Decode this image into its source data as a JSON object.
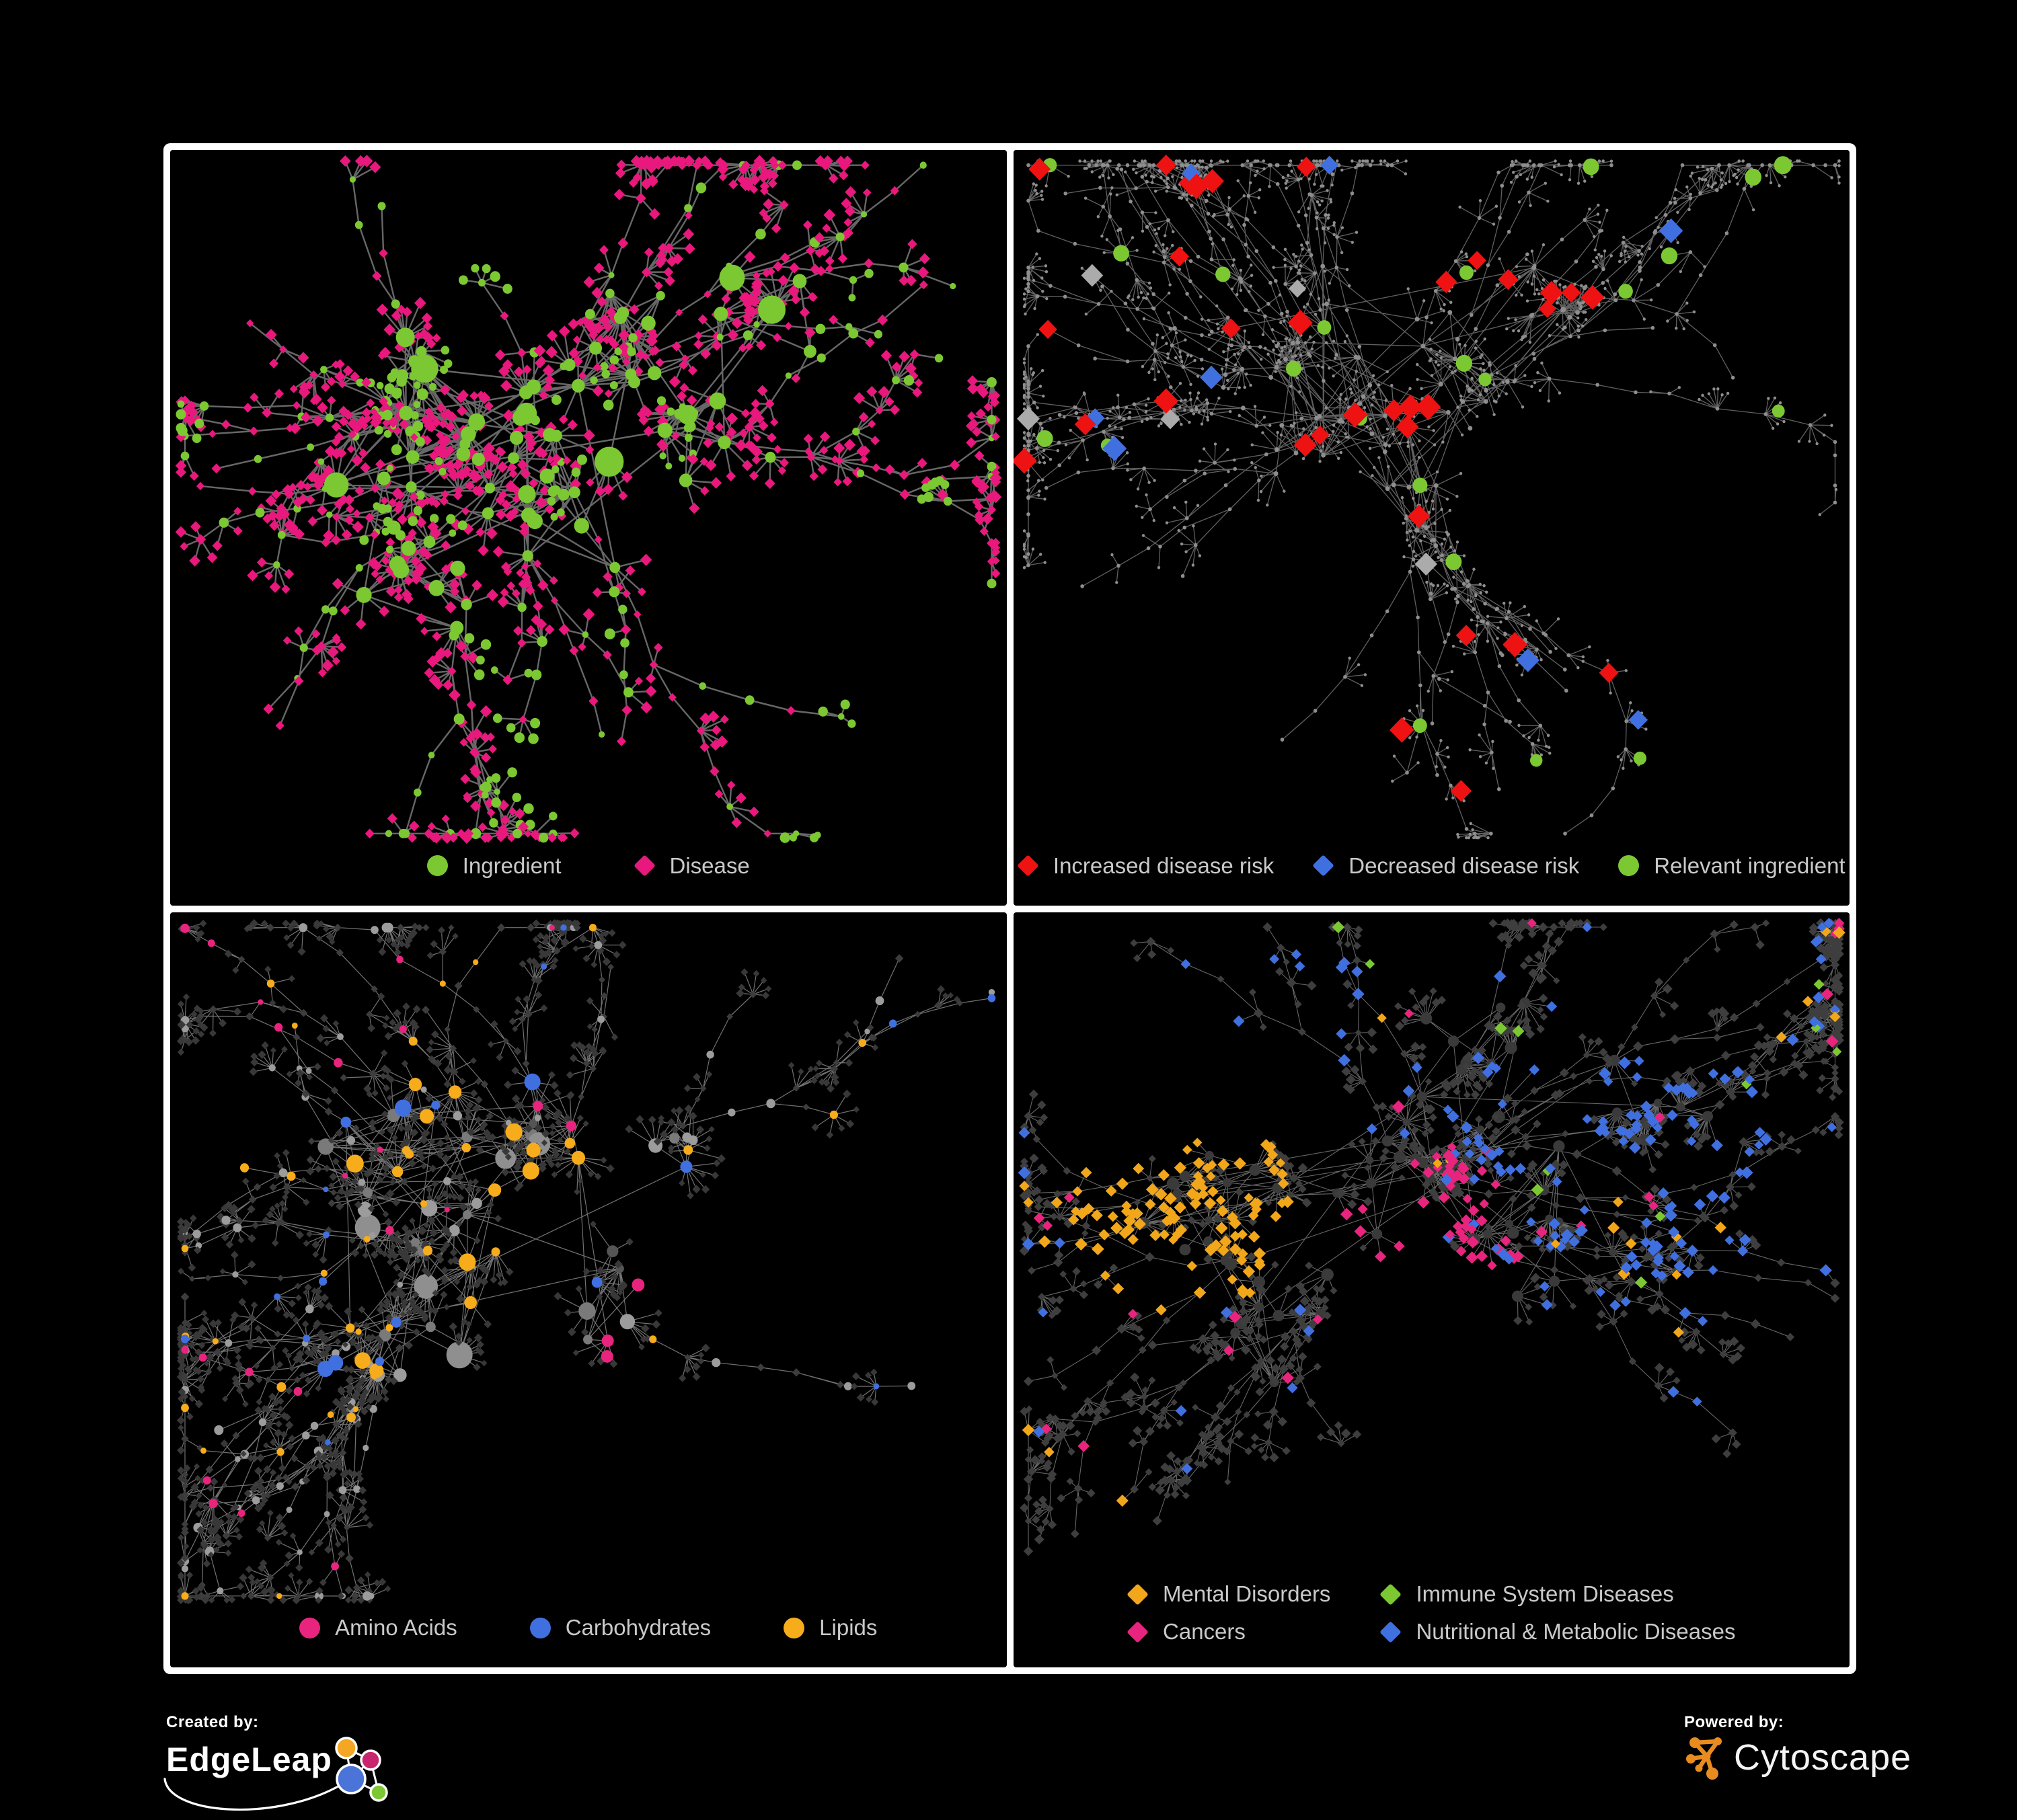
{
  "page_background": "#000000",
  "panels": [
    {
      "name": "ingredient-disease-network",
      "legend": [
        {
          "label": "Ingredient",
          "shape": "circle",
          "color": "#7CC832"
        },
        {
          "label": "Disease",
          "shape": "diamond",
          "color": "#E8187D"
        }
      ],
      "network": {
        "seed": 7,
        "style": "p1",
        "edge": {
          "color": "#707070",
          "width": 2.4,
          "opacity": 0.92
        },
        "clusters": [
          [
            0.33,
            0.36,
            0.16,
            20
          ],
          [
            0.51,
            0.3,
            0.13,
            14
          ],
          [
            0.44,
            0.5,
            0.14,
            15
          ],
          [
            0.29,
            0.58,
            0.12,
            11
          ],
          [
            0.61,
            0.42,
            0.1,
            7
          ],
          [
            0.71,
            0.24,
            0.09,
            6
          ]
        ],
        "leafChance": 0.8,
        "leafMin": 3,
        "leafMax": 11,
        "leafR": [
          26,
          56
        ],
        "tendrils": 26,
        "step": [
          42,
          80
        ],
        "fanChance": 0.42,
        "colors": {
          "green": "#7CC832",
          "pink": "#E8187D"
        }
      }
    },
    {
      "name": "disease-risk-network",
      "legend": [
        {
          "label": "Increased disease risk",
          "shape": "diamond",
          "color": "#EE1212"
        },
        {
          "label": "Decreased disease risk",
          "shape": "diamond",
          "color": "#4070E0"
        },
        {
          "label": "Relevant ingredient",
          "shape": "circle",
          "color": "#7CC832"
        }
      ],
      "network": {
        "seed": 13,
        "style": "p2",
        "edge": {
          "color": "#6A6A6A",
          "width": 1.3,
          "opacity": 0.9
        },
        "clusters": [
          [
            0.42,
            0.34,
            0.15,
            22
          ],
          [
            0.56,
            0.32,
            0.12,
            14
          ],
          [
            0.33,
            0.39,
            0.11,
            12
          ],
          [
            0.49,
            0.47,
            0.12,
            12
          ],
          [
            0.65,
            0.22,
            0.09,
            6
          ],
          [
            0.24,
            0.3,
            0.09,
            6
          ]
        ],
        "leafChance": 0.75,
        "leafMin": 3,
        "leafMax": 10,
        "leafR": [
          22,
          48
        ],
        "tendrils": 34,
        "step": [
          40,
          78
        ],
        "fanChance": 0.45,
        "base": {
          "hubR": 3.4,
          "leafR": 2.2,
          "chainR": 2.8,
          "color": "#8E8E8E"
        },
        "highlight": {
          "hubChance": 0.16,
          "chainChance": 0.035,
          "types": [
            {
              "shape": "d",
              "color": "#EE1212",
              "w": 0.5,
              "s": [
                13,
                19
              ]
            },
            {
              "shape": "c",
              "color": "#7CC832",
              "w": 0.24,
              "s": [
                9,
                13
              ]
            },
            {
              "shape": "d",
              "color": "#4070E0",
              "w": 0.13,
              "s": [
                13,
                18
              ]
            },
            {
              "shape": "d",
              "color": "#ABABAB",
              "w": 0.13,
              "s": [
                12,
                17
              ]
            }
          ]
        }
      }
    },
    {
      "name": "nutrient-class-network",
      "legend": [
        {
          "label": "Amino Acids",
          "shape": "circle",
          "color": "#E8247E"
        },
        {
          "label": "Carbohydrates",
          "shape": "circle",
          "color": "#4070E0"
        },
        {
          "label": "Lipids",
          "shape": "circle",
          "color": "#F7AC1B"
        }
      ],
      "network": {
        "seed": 21,
        "style": "p3",
        "edge": {
          "color": "#8F8F8F",
          "width": 1.2,
          "opacity": 0.8
        },
        "clusters": [
          [
            0.27,
            0.37,
            0.15,
            18
          ],
          [
            0.42,
            0.3,
            0.12,
            14
          ],
          [
            0.36,
            0.5,
            0.13,
            14
          ],
          [
            0.52,
            0.58,
            0.11,
            9
          ],
          [
            0.23,
            0.62,
            0.1,
            8
          ],
          [
            0.6,
            0.36,
            0.09,
            6
          ]
        ],
        "leafChance": 0.8,
        "leafMin": 3,
        "leafMax": 12,
        "leafR": [
          24,
          52
        ],
        "tendrils": 28,
        "step": [
          42,
          80
        ],
        "fanChance": 0.4,
        "palette": {
          "grays": [
            "#9C9C9C",
            "#7A7A7A",
            "#555555"
          ],
          "orange": "#F7AC1B",
          "pink": "#E8247E",
          "blue": "#4070E0",
          "leaf": "#383838"
        }
      }
    },
    {
      "name": "disease-class-network",
      "legend": [
        {
          "label": "Mental Disorders",
          "shape": "diamond",
          "color": "#F2A71B"
        },
        {
          "label": "Immune System Diseases",
          "shape": "diamond",
          "color": "#7CC832"
        },
        {
          "label": "Cancers",
          "shape": "diamond",
          "color": "#E8247E"
        },
        {
          "label": "Nutritional & Metabolic Diseases",
          "shape": "diamond",
          "color": "#4070E0"
        }
      ],
      "network": {
        "seed": 33,
        "style": "p4",
        "edge": {
          "color": "#8A8A8A",
          "width": 1.1,
          "opacity": 0.75
        },
        "clusters": [
          [
            0.22,
            0.43,
            0.13,
            16
          ],
          [
            0.46,
            0.4,
            0.15,
            18
          ],
          [
            0.63,
            0.45,
            0.12,
            12
          ],
          [
            0.55,
            0.22,
            0.11,
            10
          ],
          [
            0.33,
            0.6,
            0.11,
            9
          ],
          [
            0.76,
            0.3,
            0.09,
            7
          ]
        ],
        "leafChance": 0.85,
        "leafMin": 4,
        "leafMax": 13,
        "leafR": [
          22,
          48
        ],
        "tendrils": 30,
        "step": [
          40,
          76
        ],
        "fanChance": 0.45,
        "base": {
          "leaf": "#3E3E3E",
          "hub": "#3A3A3A"
        },
        "regions": [
          {
            "color": "#F2A71B",
            "fx": 0.2,
            "fy": 0.44,
            "rad": 0.13,
            "chance": 0.8
          },
          {
            "color": "#E8247E",
            "fx": 0.5,
            "fy": 0.5,
            "rad": 0.11,
            "chance": 0.5
          },
          {
            "color": "#4070E0",
            "fx": 0.72,
            "fy": 0.4,
            "rad": 0.2,
            "chance": 0.25
          },
          {
            "color": "#4070E0",
            "fx": 0.3,
            "fy": 0.14,
            "rad": 0.12,
            "chance": 0.3
          }
        ],
        "scatter": [
          {
            "color": "#4070E0",
            "chance": 0.045
          },
          {
            "color": "#F2A71B",
            "chance": 0.02
          },
          {
            "color": "#E8247E",
            "chance": 0.02
          },
          {
            "color": "#7CC832",
            "chance": 0.01
          }
        ]
      }
    }
  ],
  "chart_data": {
    "type": "network",
    "description": "Four dark-themed Cytoscape network views of an ingredient-disease association graph",
    "panels": [
      {
        "index": 0,
        "node_types": [
          {
            "label": "Ingredient",
            "shape": "circle",
            "color": "#7CC832",
            "approx_count": 300
          },
          {
            "label": "Disease",
            "shape": "diamond",
            "color": "#E8187D",
            "approx_count": 500
          }
        ]
      },
      {
        "index": 1,
        "node_types": [
          {
            "label": "Increased disease risk",
            "shape": "diamond",
            "color": "#EE1212",
            "approx_count": 30
          },
          {
            "label": "Decreased disease risk",
            "shape": "diamond",
            "color": "#4070E0",
            "approx_count": 8
          },
          {
            "label": "Relevant ingredient",
            "shape": "circle",
            "color": "#7CC832",
            "approx_count": 25
          },
          {
            "label": "unlabeled",
            "shape": "dot",
            "color": "#8E8E8E",
            "approx_count": 700
          }
        ]
      },
      {
        "index": 2,
        "node_types": [
          {
            "label": "Amino Acids",
            "shape": "circle",
            "color": "#E8247E",
            "approx_count": 20
          },
          {
            "label": "Carbohydrates",
            "shape": "circle",
            "color": "#4070E0",
            "approx_count": 12
          },
          {
            "label": "Lipids",
            "shape": "circle",
            "color": "#F7AC1B",
            "approx_count": 70
          },
          {
            "label": "other",
            "shape": "circle-diamond",
            "color": "#9C9C9C",
            "approx_count": 650
          }
        ]
      },
      {
        "index": 3,
        "node_types": [
          {
            "label": "Mental Disorders",
            "shape": "diamond",
            "color": "#F2A71B",
            "approx_count": 90
          },
          {
            "label": "Immune System Diseases",
            "shape": "diamond",
            "color": "#7CC832",
            "approx_count": 8
          },
          {
            "label": "Cancers",
            "shape": "diamond",
            "color": "#E8247E",
            "approx_count": 55
          },
          {
            "label": "Nutritional & Metabolic Diseases",
            "shape": "diamond",
            "color": "#4070E0",
            "approx_count": 85
          },
          {
            "label": "other",
            "shape": "diamond",
            "color": "#3E3E3E",
            "approx_count": 550
          }
        ]
      }
    ]
  },
  "footer": {
    "created_by_label": "Created by:",
    "edgeleap_name": "EdgeLeap",
    "powered_by_label": "Powered by:",
    "cytoscape_name": "Cytoscape",
    "edgeleap_node_colors": {
      "orange": "#F5A623",
      "magenta": "#C9256E",
      "blue": "#4A74D8",
      "green": "#7CC832"
    },
    "cytoscape_orange": "#E98C1F"
  }
}
